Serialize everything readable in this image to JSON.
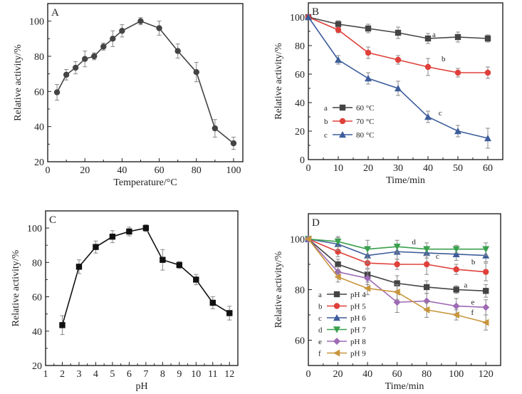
{
  "chart_data": [
    {
      "panel": "A",
      "type": "line",
      "xlabel": "Temperature/°C",
      "ylabel": "Relative activity/%",
      "xlim": [
        0,
        105
      ],
      "ylim": [
        20,
        110
      ],
      "xticks": [
        0,
        20,
        40,
        60,
        80,
        100
      ],
      "yticks": [
        20,
        40,
        60,
        80,
        100
      ],
      "grid": false,
      "series": [
        {
          "color": "#444444",
          "marker": "circle",
          "x": [
            5,
            10,
            15,
            20,
            25,
            30,
            35,
            40,
            50,
            60,
            70,
            80,
            90,
            100
          ],
          "y": [
            59.5,
            69.5,
            73.5,
            78.5,
            80,
            85.5,
            90,
            94.5,
            100,
            96,
            83,
            71,
            39,
            30.5
          ],
          "err": [
            4.5,
            3,
            3.5,
            4.5,
            2,
            2,
            4.5,
            3.5,
            2,
            4,
            4,
            5.5,
            5,
            3.5
          ]
        }
      ]
    },
    {
      "panel": "B",
      "type": "line",
      "xlabel": "Time/min",
      "ylabel": "Relative activity/%",
      "xlim": [
        0,
        65
      ],
      "ylim": [
        0,
        110
      ],
      "xticks": [
        0,
        10,
        20,
        30,
        40,
        50,
        60
      ],
      "yticks": [
        0,
        20,
        40,
        60,
        80,
        100
      ],
      "grid": false,
      "legend_position": "bottom-left",
      "series": [
        {
          "letter": "a",
          "name": "60 °C",
          "color": "#444444",
          "marker": "square",
          "x": [
            0,
            10,
            20,
            30,
            40,
            50,
            60
          ],
          "y": [
            100,
            95,
            92,
            89,
            85,
            86,
            85
          ],
          "err": [
            0,
            2.5,
            3,
            4,
            3.5,
            3.5,
            2.5
          ]
        },
        {
          "letter": "b",
          "name": "70 °C",
          "color": "#e0403a",
          "marker": "circle",
          "x": [
            0,
            10,
            20,
            30,
            40,
            50,
            60
          ],
          "y": [
            100,
            91,
            75,
            70,
            65,
            61,
            61
          ],
          "err": [
            0,
            2,
            4,
            3,
            6,
            3,
            4
          ]
        },
        {
          "letter": "c",
          "name": "80 °C",
          "color": "#3d5d9b",
          "marker": "triangle",
          "x": [
            0,
            10,
            20,
            30,
            40,
            50,
            60
          ],
          "y": [
            100,
            70,
            57,
            50,
            30,
            20,
            15
          ],
          "err": [
            0,
            3,
            4,
            5,
            4,
            4,
            7
          ]
        }
      ]
    },
    {
      "panel": "C",
      "type": "line",
      "xlabel": "pH",
      "ylabel": "Relative activity/%",
      "xlim": [
        1,
        12.5
      ],
      "ylim": [
        20,
        110
      ],
      "xticks": [
        1,
        2,
        3,
        4,
        5,
        6,
        7,
        8,
        9,
        10,
        11,
        12
      ],
      "yticks": [
        20,
        40,
        60,
        80,
        100
      ],
      "grid": false,
      "series": [
        {
          "color": "#111111",
          "marker": "square",
          "x": [
            2,
            3,
            4,
            5,
            6,
            7,
            8,
            9,
            10,
            11,
            12
          ],
          "y": [
            43.5,
            77.5,
            89,
            95,
            98,
            100,
            81.5,
            78.5,
            70,
            56.5,
            50.5
          ],
          "err": [
            5.5,
            4,
            3.5,
            3.5,
            2.5,
            2,
            6,
            2,
            3,
            3.5,
            4
          ]
        }
      ]
    },
    {
      "panel": "D",
      "type": "line",
      "xlabel": "Time/min",
      "ylabel": "Relative activity/%",
      "xlim": [
        0,
        130
      ],
      "ylim": [
        50,
        110
      ],
      "xticks": [
        0,
        20,
        40,
        60,
        80,
        100,
        120
      ],
      "yticks": [
        60,
        80,
        100
      ],
      "grid": false,
      "legend_position": "bottom-left",
      "series": [
        {
          "letter": "a",
          "name": "pH 4",
          "color": "#444444",
          "marker": "square",
          "x": [
            0,
            20,
            40,
            60,
            80,
            100,
            120
          ],
          "y": [
            100,
            90,
            86,
            82.5,
            81,
            80,
            79.5
          ],
          "err": [
            0,
            2,
            2,
            3,
            2.5,
            1.5,
            2.5
          ]
        },
        {
          "letter": "b",
          "name": "pH 5",
          "color": "#e0403a",
          "marker": "circle",
          "x": [
            0,
            20,
            40,
            60,
            80,
            100,
            120
          ],
          "y": [
            100,
            95,
            90.5,
            90,
            90,
            88,
            87
          ],
          "err": [
            0,
            2,
            2,
            2,
            4,
            2,
            3.5
          ]
        },
        {
          "letter": "c",
          "name": "pH 6",
          "color": "#3d5d9b",
          "marker": "triangle",
          "x": [
            0,
            20,
            40,
            60,
            80,
            100,
            120
          ],
          "y": [
            100,
            98,
            93.5,
            95,
            94.5,
            94,
            93.5
          ],
          "err": [
            0,
            2.5,
            3,
            3,
            2,
            2.5,
            2.5
          ]
        },
        {
          "letter": "d",
          "name": "pH 7",
          "color": "#3aa04e",
          "marker": "triangle-down",
          "x": [
            0,
            20,
            40,
            60,
            80,
            100,
            120
          ],
          "y": [
            100,
            99,
            96,
            97,
            96,
            96,
            96
          ],
          "err": [
            0,
            2,
            3.5,
            2.5,
            2.5,
            1.5,
            2.5
          ]
        },
        {
          "letter": "e",
          "name": "pH 8",
          "color": "#9e6ab5",
          "marker": "diamond",
          "x": [
            0,
            20,
            40,
            60,
            80,
            100,
            120
          ],
          "y": [
            100,
            87,
            84.5,
            75,
            75.5,
            73.5,
            73
          ],
          "err": [
            0,
            2,
            2.5,
            4,
            3,
            3,
            3
          ]
        },
        {
          "letter": "f",
          "name": "pH 9",
          "color": "#c8963c",
          "marker": "triangle-left",
          "x": [
            0,
            20,
            40,
            60,
            80,
            100,
            120
          ],
          "y": [
            100,
            85,
            80.5,
            79,
            72,
            70,
            67
          ],
          "err": [
            0,
            2,
            2.5,
            3,
            3,
            2,
            3
          ]
        }
      ]
    }
  ]
}
